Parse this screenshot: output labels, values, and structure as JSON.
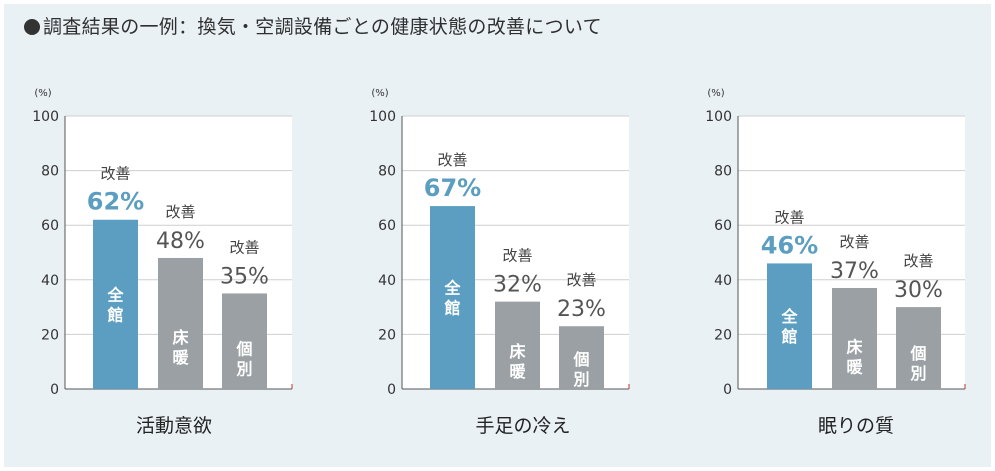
{
  "title": "調査結果の一例：換気・空調設備ごとの健康状態の改善について",
  "colors": {
    "highlight": "#5b9ec1",
    "gray": "#9aa0a3",
    "background": "#e9f1f5",
    "plot": "#ffffff"
  },
  "chart_data": [
    {
      "type": "bar",
      "title": "活動意欲",
      "ylabel": "(%)",
      "ylim": [
        0,
        100
      ],
      "yticks": [
        "0",
        "20",
        "40",
        "60",
        "80",
        "100"
      ],
      "grid": true,
      "categories": [
        "全館",
        "床暖",
        "個別"
      ],
      "values": [
        62,
        48,
        35
      ],
      "data_labels": [
        "62%",
        "48%",
        "35%"
      ],
      "notes": [
        "改善",
        "改善",
        "改善"
      ]
    },
    {
      "type": "bar",
      "title": "手足の冷え",
      "ylabel": "(%)",
      "ylim": [
        0,
        100
      ],
      "yticks": [
        "0",
        "20",
        "40",
        "60",
        "80",
        "100"
      ],
      "grid": true,
      "categories": [
        "全館",
        "床暖",
        "個別"
      ],
      "values": [
        67,
        32,
        23
      ],
      "data_labels": [
        "67%",
        "32%",
        "23%"
      ],
      "notes": [
        "改善",
        "改善",
        "改善"
      ]
    },
    {
      "type": "bar",
      "title": "眠りの質",
      "ylabel": "(%)",
      "ylim": [
        0,
        100
      ],
      "yticks": [
        "0",
        "20",
        "40",
        "60",
        "80",
        "100"
      ],
      "grid": true,
      "categories": [
        "全館",
        "床暖",
        "個別"
      ],
      "values": [
        46,
        37,
        30
      ],
      "data_labels": [
        "46%",
        "37%",
        "30%"
      ],
      "notes": [
        "改善",
        "改善",
        "改善"
      ]
    }
  ]
}
